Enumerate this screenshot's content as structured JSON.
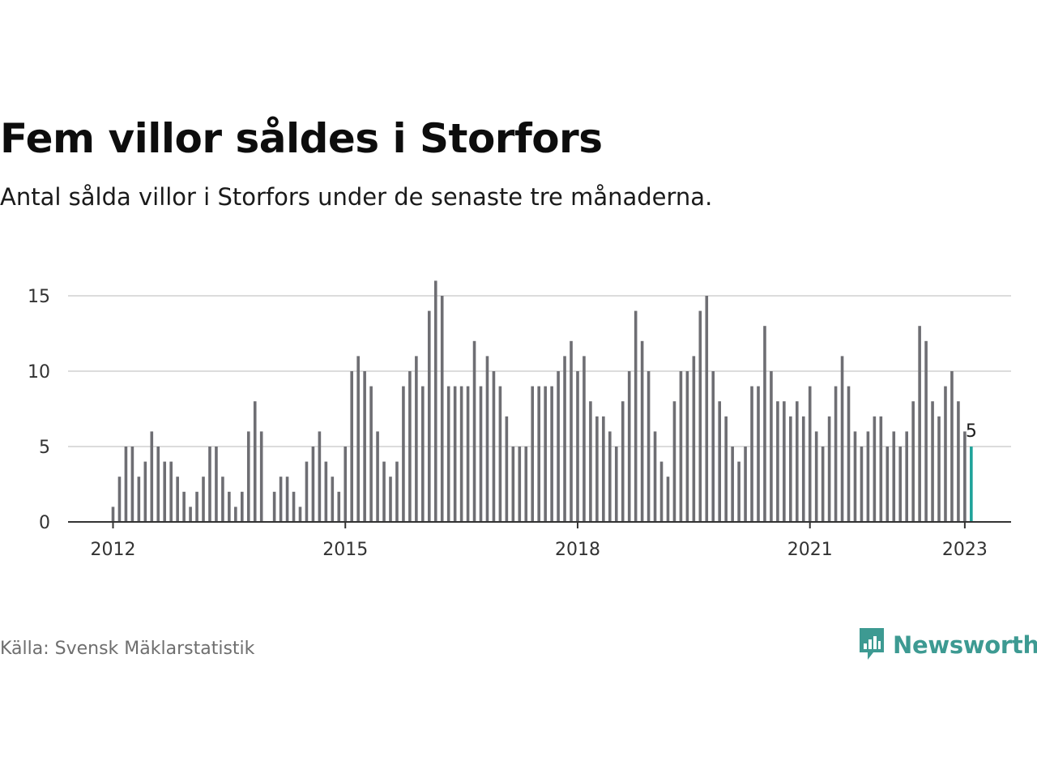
{
  "header": {
    "title": "Fem villor såldes i Storfors",
    "subtitle": "Antal sålda villor i Storfors under de senaste tre månaderna."
  },
  "footer": {
    "source": "Källa: Svensk Mäklarstatistik",
    "brand": "Newsworthy",
    "brand_icon": "bar-chart-speech-bubble-icon"
  },
  "colors": {
    "bar": "#6e6e73",
    "highlight": "#1fa39a",
    "grid": "#dcdcdc",
    "axis": "#333333",
    "brand": "#3d9a92"
  },
  "chart_data": {
    "type": "bar",
    "title": "Fem villor såldes i Storfors",
    "subtitle": "Antal sålda villor i Storfors under de senaste tre månaderna.",
    "xlabel": "",
    "ylabel": "",
    "x_start": "2012-01",
    "x_end": "2023-01",
    "x_ticks": [
      "2012",
      "2015",
      "2018",
      "2021",
      "2023"
    ],
    "y_ticks": [
      0,
      5,
      10,
      15
    ],
    "ylim": [
      0,
      16
    ],
    "grid": true,
    "highlight_label": "5",
    "values": [
      1,
      3,
      5,
      5,
      3,
      4,
      6,
      5,
      4,
      4,
      3,
      2,
      1,
      2,
      3,
      5,
      5,
      3,
      2,
      1,
      2,
      6,
      8,
      6,
      null,
      2,
      3,
      3,
      2,
      1,
      4,
      5,
      6,
      4,
      3,
      2,
      5,
      10,
      11,
      10,
      9,
      6,
      4,
      3,
      4,
      9,
      10,
      11,
      9,
      14,
      16,
      15,
      9,
      9,
      9,
      9,
      12,
      9,
      11,
      10,
      9,
      7,
      5,
      5,
      5,
      9,
      9,
      9,
      9,
      10,
      11,
      12,
      10,
      11,
      8,
      7,
      7,
      6,
      5,
      8,
      10,
      14,
      12,
      10,
      6,
      4,
      3,
      8,
      10,
      10,
      11,
      14,
      15,
      10,
      8,
      7,
      5,
      4,
      5,
      9,
      9,
      13,
      10,
      8,
      8,
      7,
      8,
      7,
      9,
      6,
      5,
      7,
      9,
      11,
      9,
      6,
      5,
      6,
      7,
      7,
      5,
      6,
      5,
      6,
      8,
      13,
      12,
      8,
      7,
      9,
      10,
      8,
      6,
      5
    ]
  }
}
